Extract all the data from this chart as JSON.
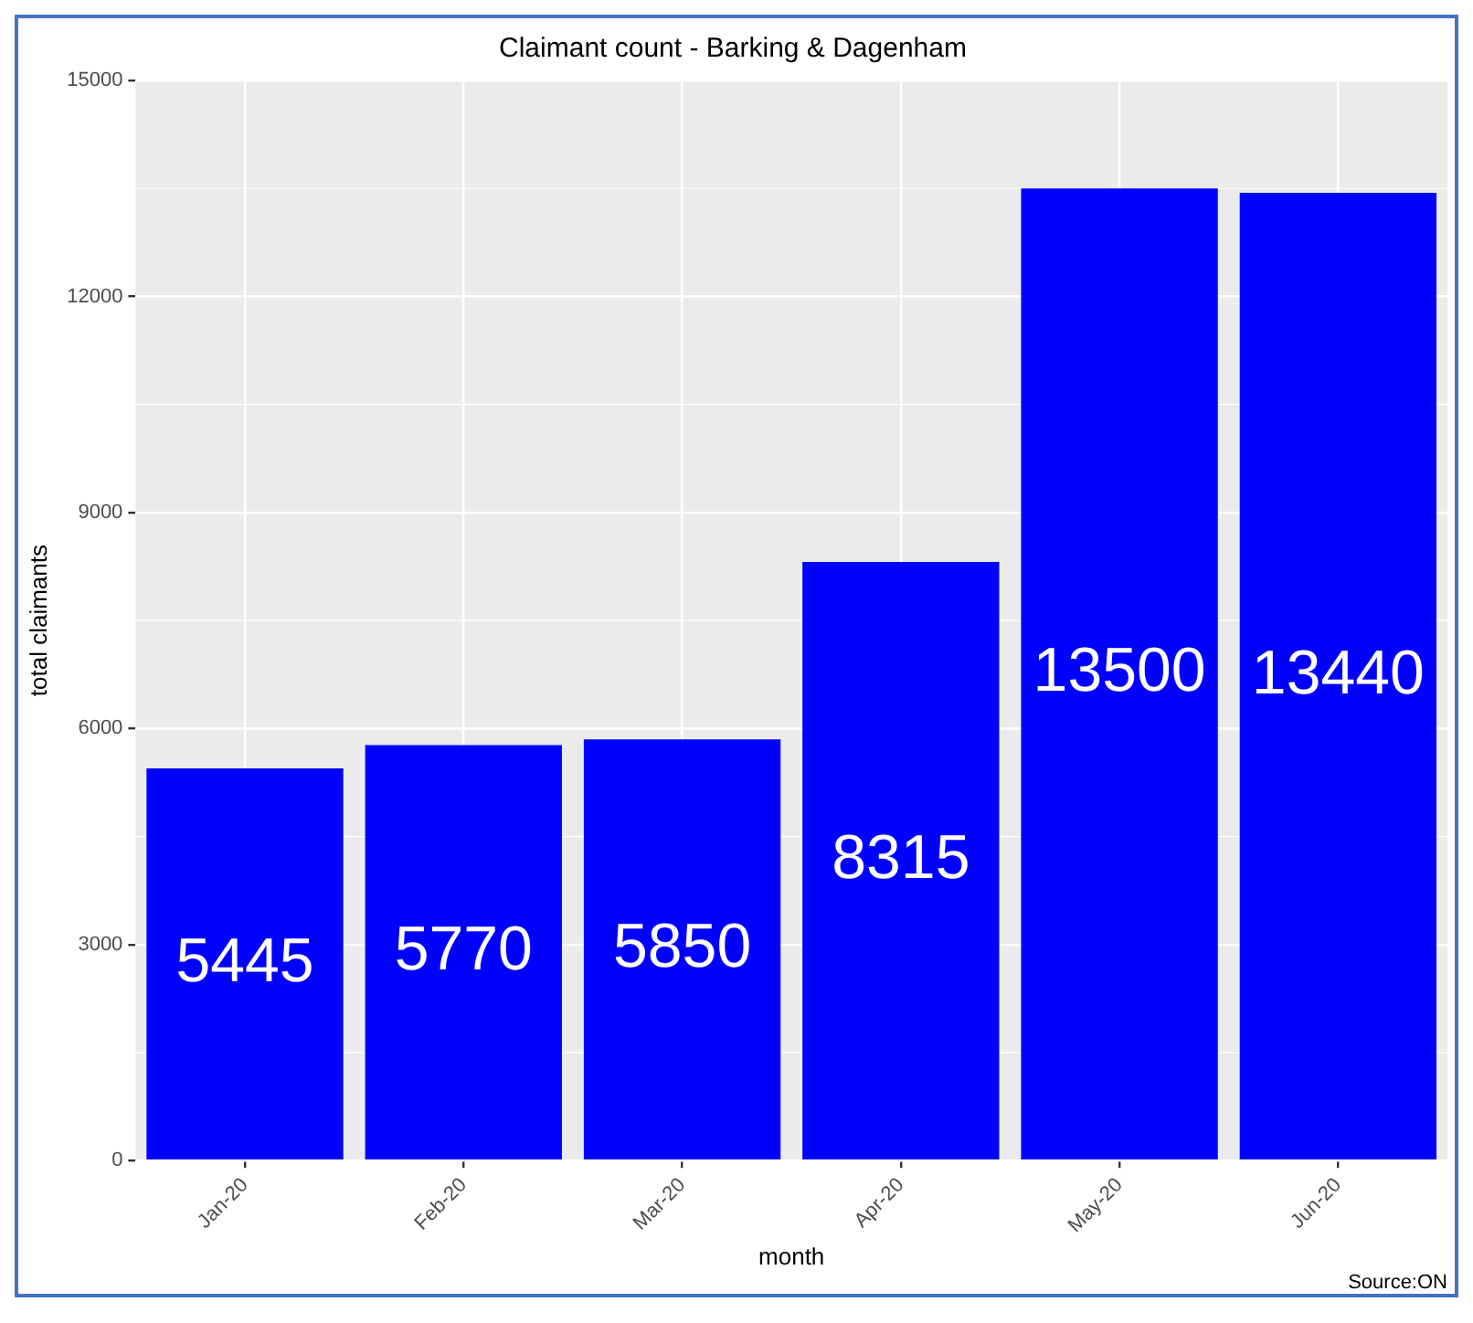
{
  "chart_data": {
    "type": "bar",
    "title": "Claimant count - Barking & Dagenham",
    "xlabel": "month",
    "ylabel": "total claimants",
    "categories": [
      "Jan-20",
      "Feb-20",
      "Mar-20",
      "Apr-20",
      "May-20",
      "Jun-20"
    ],
    "values": [
      5445,
      5770,
      5850,
      8315,
      13500,
      13440
    ],
    "color": "#0000ff",
    "ylim": [
      0,
      15000
    ],
    "yticks": [
      0,
      3000,
      6000,
      9000,
      12000,
      15000
    ],
    "grid": true,
    "data_labels": true,
    "annotations": [
      "Source:ON"
    ]
  }
}
